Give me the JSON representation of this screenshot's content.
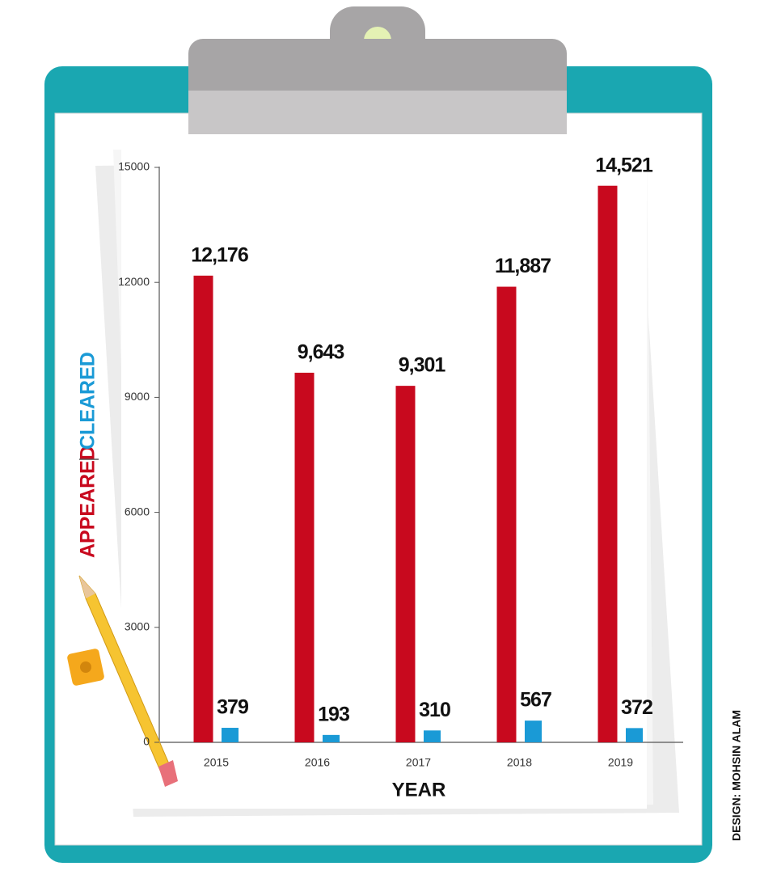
{
  "chart_data": {
    "type": "bar",
    "categories": [
      "2015",
      "2016",
      "2017",
      "2018",
      "2019"
    ],
    "series": [
      {
        "name": "APPEARED",
        "color": "#c8091e",
        "values": [
          12176,
          9643,
          9301,
          11887,
          14521
        ],
        "value_labels": [
          "12,176",
          "9,643",
          "9,301",
          "11,887",
          "14,521"
        ]
      },
      {
        "name": "CLEARED",
        "color": "#1a9ad6",
        "values": [
          379,
          193,
          310,
          567,
          372
        ]
      }
    ],
    "ylim": [
      0,
      15000
    ],
    "yticks": [
      0,
      3000,
      6000,
      9000,
      12000,
      15000
    ],
    "x_label": "YEAR",
    "grid": false
  },
  "credit": "DESIGN: MOHSIN ALAM"
}
